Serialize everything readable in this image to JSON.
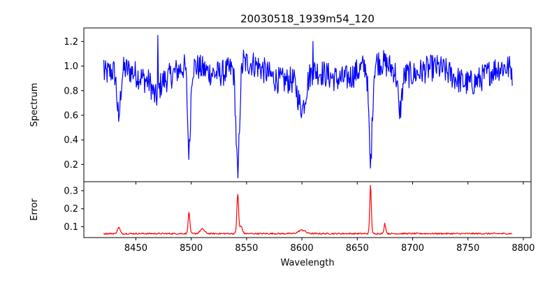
{
  "chart_data": [
    {
      "type": "line",
      "title": "20030518_1939m54_120",
      "xlabel": "",
      "ylabel": "Spectrum",
      "xlim": [
        8403,
        8807
      ],
      "ylim": [
        0.06,
        1.31
      ],
      "xticks": [
        8450,
        8500,
        8550,
        8600,
        8650,
        8700,
        8750,
        8800
      ],
      "yticks": [
        0.2,
        0.4,
        0.6,
        0.8,
        1.0,
        1.2
      ],
      "ytick_labels": [
        "0.2",
        "0.4",
        "0.6",
        "0.8",
        "1.0",
        "1.2"
      ],
      "show_xtick_labels": false,
      "grid": false,
      "series": [
        {
          "color": "#0000ff",
          "x_start": 8421,
          "x_end": 8790,
          "baseline": 0.95,
          "features": [
            {
              "center": 8434.5,
              "depth": 0.38,
              "width": 1.6
            },
            {
              "center": 8468.0,
              "depth": 0.12,
              "width": 2.5
            },
            {
              "center": 8498.0,
              "depth": 0.7,
              "width": 1.3
            },
            {
              "center": 8542.0,
              "depth": 0.84,
              "width": 1.6
            },
            {
              "center": 8600.0,
              "depth": 0.28,
              "width": 3.5
            },
            {
              "center": 8662.0,
              "depth": 0.78,
              "width": 1.6
            },
            {
              "center": 8688.5,
              "depth": 0.3,
              "width": 1.8
            }
          ],
          "landmarks": [
            {
              "x": 8421,
              "y": 1.05
            },
            {
              "x": 8434.5,
              "y": 0.55
            },
            {
              "x": 8470,
              "y": 1.25
            },
            {
              "x": 8498,
              "y": 0.24
            },
            {
              "x": 8542,
              "y": 0.09
            },
            {
              "x": 8547,
              "y": 1.13
            },
            {
              "x": 8600,
              "y": 0.62
            },
            {
              "x": 8610,
              "y": 1.2
            },
            {
              "x": 8662,
              "y": 0.17
            },
            {
              "x": 8688,
              "y": 0.65
            },
            {
              "x": 8790,
              "y": 0.84
            }
          ]
        }
      ]
    },
    {
      "type": "line",
      "title": "",
      "xlabel": "Wavelength",
      "ylabel": "Error",
      "xlim": [
        8403,
        8807
      ],
      "ylim": [
        0.04,
        0.35
      ],
      "xticks": [
        8450,
        8500,
        8550,
        8600,
        8650,
        8700,
        8750,
        8800
      ],
      "xtick_labels": [
        "8450",
        "8500",
        "8550",
        "8600",
        "8650",
        "8700",
        "8750",
        "8800"
      ],
      "yticks": [
        0.1,
        0.2,
        0.3
      ],
      "ytick_labels": [
        "0.1",
        "0.2",
        "0.3"
      ],
      "grid": false,
      "series": [
        {
          "color": "#ff0000",
          "x_start": 8421,
          "x_end": 8790,
          "baseline": 0.062,
          "features": [
            {
              "center": 8434.5,
              "height": 0.035,
              "width": 1.2
            },
            {
              "center": 8498.0,
              "height": 0.115,
              "width": 0.8
            },
            {
              "center": 8510.0,
              "height": 0.025,
              "width": 2.0
            },
            {
              "center": 8542.0,
              "height": 0.215,
              "width": 0.8
            },
            {
              "center": 8545.0,
              "height": 0.04,
              "width": 1.2
            },
            {
              "center": 8600.0,
              "height": 0.02,
              "width": 3.0
            },
            {
              "center": 8662.0,
              "height": 0.27,
              "width": 0.7
            },
            {
              "center": 8675.0,
              "height": 0.05,
              "width": 0.8
            }
          ],
          "landmarks": [
            {
              "x": 8498,
              "y": 0.18
            },
            {
              "x": 8542,
              "y": 0.28
            },
            {
              "x": 8662,
              "y": 0.33
            },
            {
              "x": 8675,
              "y": 0.12
            }
          ]
        }
      ]
    }
  ]
}
